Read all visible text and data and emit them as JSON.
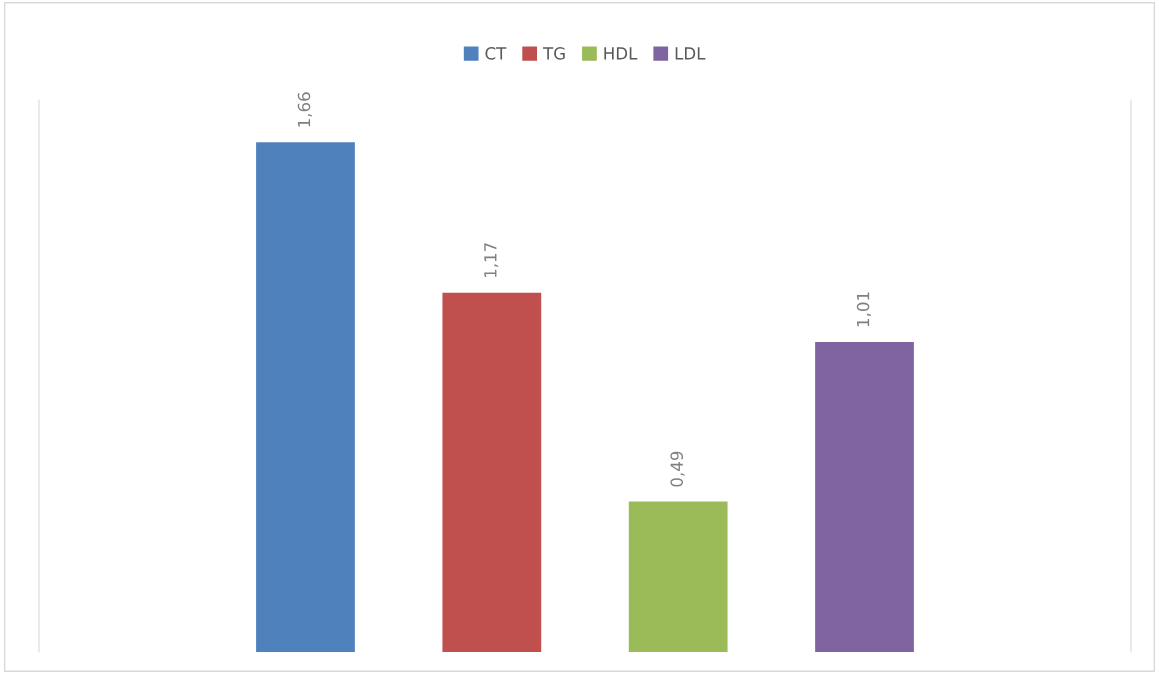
{
  "chart_data": {
    "type": "bar",
    "categories": [
      null,
      null,
      null,
      null
    ],
    "stacked": true,
    "legend": "top",
    "grid": false,
    "series": [
      {
        "name": "CT",
        "color": "#4f81bd",
        "values": [
          1.66,
          null,
          null,
          null
        ],
        "value_labels": [
          "1,66",
          null,
          null,
          null
        ]
      },
      {
        "name": "TG",
        "color": "#c0504d",
        "values": [
          null,
          1.17,
          null,
          null
        ],
        "value_labels": [
          null,
          "1,17",
          null,
          null
        ]
      },
      {
        "name": "HDL",
        "color": "#9bbb59",
        "values": [
          null,
          null,
          0.49,
          null
        ],
        "value_labels": [
          null,
          null,
          "0,49",
          null
        ]
      },
      {
        "name": "LDL",
        "color": "#8064a2",
        "values": [
          null,
          null,
          null,
          1.01
        ],
        "value_labels": [
          null,
          null,
          null,
          "1,01"
        ]
      }
    ]
  }
}
